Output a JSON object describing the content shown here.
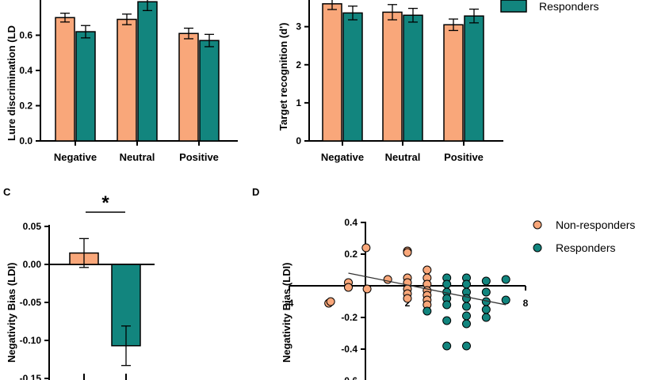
{
  "colors": {
    "non_responders": "#F9A77A",
    "responders": "#12857E",
    "axis": "#000000"
  },
  "legend_top": {
    "responders": "Responders"
  },
  "chart_data": [
    {
      "id": "A",
      "type": "bar",
      "ylabel": "Lure discrimination (LD",
      "categories": [
        "Negative",
        "Neutral",
        "Positive"
      ],
      "ylim": [
        0,
        0.8
      ],
      "yticks": [
        "0.0",
        "0.2",
        "0.4",
        "0.6"
      ],
      "series": [
        {
          "values": [
            0.7,
            0.69,
            0.61
          ],
          "errors": [
            0.025,
            0.03,
            0.03
          ]
        },
        {
          "values": [
            0.62,
            0.79,
            0.57
          ],
          "errors": [
            0.035,
            0.05,
            0.035
          ]
        }
      ]
    },
    {
      "id": "B",
      "type": "bar",
      "ylabel": "Target recognition (d')",
      "categories": [
        "Negative",
        "Neutral",
        "Positive"
      ],
      "ylim": [
        0,
        3.7
      ],
      "yticks": [
        "0",
        "1",
        "2",
        "3"
      ],
      "series": [
        {
          "values": [
            3.6,
            3.38,
            3.05
          ],
          "errors": [
            0.15,
            0.2,
            0.15
          ]
        },
        {
          "values": [
            3.36,
            3.3,
            3.28
          ],
          "errors": [
            0.18,
            0.18,
            0.18
          ]
        }
      ]
    },
    {
      "id": "C",
      "panel_label": "C",
      "type": "bar",
      "ylabel": "Negativity Bias (LDI)",
      "ylim": [
        -0.15,
        0.05
      ],
      "yticks": [
        "0.05",
        "0.00",
        "-0.05",
        "-0.10",
        "-0.15"
      ],
      "ytick_values": [
        0.05,
        0.0,
        -0.05,
        -0.1,
        -0.15
      ],
      "series": [
        {
          "values": [
            0.015
          ],
          "errors": [
            0.019
          ]
        },
        {
          "values": [
            -0.107
          ],
          "errors": [
            0.026
          ]
        }
      ],
      "annotation": "*"
    },
    {
      "id": "D",
      "panel_label": "D",
      "type": "scatter",
      "ylabel": "Negativity Bias (LDI)",
      "xlim": [
        -4,
        8
      ],
      "ylim": [
        -0.6,
        0.4
      ],
      "xticks": [
        "-4",
        "2",
        "8"
      ],
      "xtick_values": [
        -4,
        2,
        8
      ],
      "yticks": [
        "0.4",
        "0.2",
        "-0.2",
        "-0.4",
        "-0.6"
      ],
      "ytick_values": [
        0.4,
        0.2,
        -0.2,
        -0.4,
        -0.6
      ],
      "legend": [
        "Non-responders",
        "Responders"
      ],
      "series": [
        {
          "name": "Non-responders",
          "points": [
            [
              -2.0,
              -0.11
            ],
            [
              -1.9,
              -0.1
            ],
            [
              -1.0,
              0.02
            ],
            [
              -1.0,
              -0.01
            ],
            [
              -0.1,
              0.24
            ],
            [
              -0.05,
              -0.02
            ],
            [
              1.0,
              0.04
            ],
            [
              2.0,
              0.22
            ],
            [
              2.0,
              0.21
            ],
            [
              2.0,
              0.05
            ],
            [
              2.0,
              0.02
            ],
            [
              2.0,
              -0.02
            ],
            [
              2.0,
              -0.05
            ],
            [
              2.0,
              -0.08
            ],
            [
              3.0,
              0.1
            ],
            [
              3.0,
              0.05
            ],
            [
              3.0,
              0.01
            ],
            [
              3.0,
              -0.03
            ],
            [
              3.0,
              -0.06
            ],
            [
              3.0,
              -0.09
            ],
            [
              3.0,
              -0.12
            ]
          ]
        },
        {
          "name": "Responders",
          "points": [
            [
              3.0,
              -0.16
            ],
            [
              4.0,
              0.05
            ],
            [
              4.0,
              0.01
            ],
            [
              4.0,
              -0.04
            ],
            [
              4.0,
              -0.08
            ],
            [
              4.0,
              -0.12
            ],
            [
              4.0,
              -0.22
            ],
            [
              4.0,
              -0.38
            ],
            [
              5.0,
              0.05
            ],
            [
              5.0,
              0.01
            ],
            [
              5.0,
              -0.04
            ],
            [
              5.0,
              -0.08
            ],
            [
              5.0,
              -0.13
            ],
            [
              5.0,
              -0.19
            ],
            [
              5.0,
              -0.24
            ],
            [
              5.0,
              -0.38
            ],
            [
              6.0,
              0.03
            ],
            [
              6.0,
              -0.04
            ],
            [
              6.0,
              -0.1
            ],
            [
              6.0,
              -0.15
            ],
            [
              6.0,
              -0.2
            ],
            [
              7.0,
              0.04
            ],
            [
              7.0,
              -0.09
            ]
          ]
        }
      ],
      "regression": {
        "x": [
          -1.0,
          7.0
        ],
        "y": [
          0.08,
          -0.12
        ]
      }
    }
  ]
}
